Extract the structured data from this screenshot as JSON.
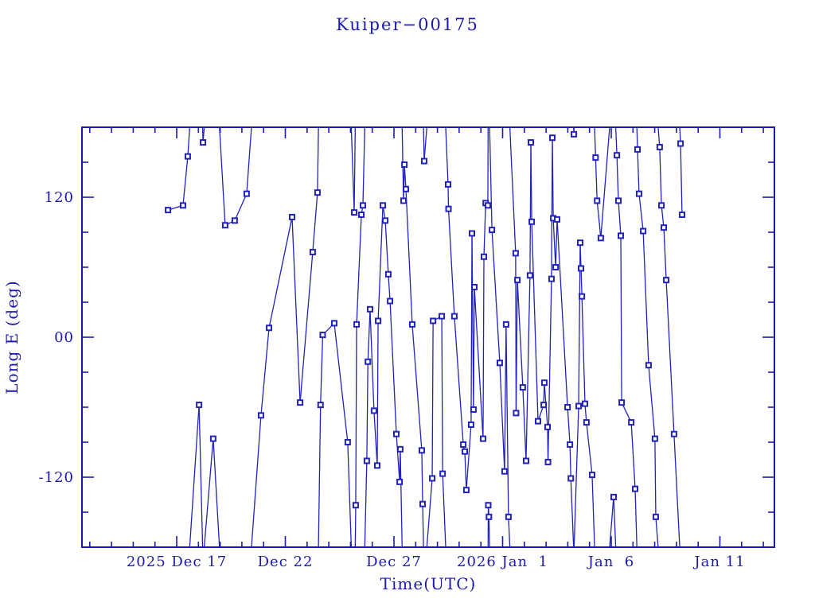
{
  "page": {
    "background": "#ffffff"
  },
  "colors": {
    "ink": "#1a1aae",
    "line": "#2121bc",
    "marker": "#2121bc"
  },
  "chart_data": {
    "type": "line",
    "title": "Kuiper−00175",
    "xlabel": "Time(UTC)",
    "ylabel": "Long E (deg)",
    "x_unit": "days since 2025 Dec 17 00:00 UTC",
    "xlim": [
      -4.36,
      27.51
    ],
    "ylim": [
      -180,
      180
    ],
    "wrap_degrees": true,
    "grid": false,
    "legend": "none",
    "marker_style": "open-square",
    "x_major_ticks": [
      {
        "day": 0,
        "label": "2025 Dec 17"
      },
      {
        "day": 5,
        "label": "Dec 22"
      },
      {
        "day": 10,
        "label": "Dec 27"
      },
      {
        "day": 15,
        "label": "2026 Jan  1"
      },
      {
        "day": 20,
        "label": "Jan  6"
      },
      {
        "day": 25,
        "label": "Jan 11"
      }
    ],
    "x_minor_step_days": 1,
    "y_major_ticks": [
      {
        "value": 120,
        "label": "120"
      },
      {
        "value": 0,
        "label": "00"
      },
      {
        "value": -120,
        "label": "-120"
      }
    ],
    "y_minor_step": 30,
    "points": [
      [
        -0.4,
        109
      ],
      [
        0.29,
        113
      ],
      [
        0.51,
        155
      ],
      [
        1.03,
        -58
      ],
      [
        1.21,
        167
      ],
      [
        1.68,
        -87
      ],
      [
        2.23,
        96
      ],
      [
        2.67,
        100
      ],
      [
        3.22,
        123
      ],
      [
        3.88,
        -67
      ],
      [
        4.25,
        8
      ],
      [
        5.31,
        103
      ],
      [
        5.68,
        -56
      ],
      [
        6.26,
        73
      ],
      [
        6.48,
        124
      ],
      [
        6.62,
        -58
      ],
      [
        6.72,
        2
      ],
      [
        7.25,
        12
      ],
      [
        7.87,
        -90
      ],
      [
        8.17,
        107
      ],
      [
        8.24,
        -144
      ],
      [
        8.28,
        11
      ],
      [
        8.5,
        105
      ],
      [
        8.57,
        113
      ],
      [
        8.75,
        -106
      ],
      [
        8.8,
        -21
      ],
      [
        8.9,
        24
      ],
      [
        9.08,
        -63
      ],
      [
        9.23,
        -110
      ],
      [
        9.27,
        14
      ],
      [
        9.49,
        113
      ],
      [
        9.6,
        100
      ],
      [
        9.74,
        54
      ],
      [
        9.82,
        31
      ],
      [
        10.11,
        -83
      ],
      [
        10.26,
        -124
      ],
      [
        10.29,
        -96
      ],
      [
        10.44,
        117
      ],
      [
        10.48,
        148
      ],
      [
        10.55,
        127
      ],
      [
        10.84,
        11
      ],
      [
        11.28,
        -97
      ],
      [
        11.32,
        -143
      ],
      [
        11.39,
        151
      ],
      [
        11.76,
        -121
      ],
      [
        11.8,
        14
      ],
      [
        12.2,
        18
      ],
      [
        12.24,
        -117
      ],
      [
        12.49,
        131
      ],
      [
        12.51,
        110
      ],
      [
        12.78,
        18
      ],
      [
        13.19,
        -92
      ],
      [
        13.26,
        -98
      ],
      [
        13.33,
        -131
      ],
      [
        13.55,
        -75
      ],
      [
        13.59,
        89
      ],
      [
        13.66,
        -62
      ],
      [
        13.7,
        43
      ],
      [
        14.1,
        -87
      ],
      [
        14.14,
        69
      ],
      [
        14.22,
        115
      ],
      [
        14.32,
        113
      ],
      [
        14.34,
        -144
      ],
      [
        14.37,
        -154
      ],
      [
        14.51,
        92
      ],
      [
        14.87,
        -22
      ],
      [
        15.09,
        -115
      ],
      [
        15.16,
        11
      ],
      [
        15.27,
        -154
      ],
      [
        15.6,
        72
      ],
      [
        15.62,
        -65
      ],
      [
        15.68,
        49
      ],
      [
        15.93,
        -43
      ],
      [
        16.08,
        -106
      ],
      [
        16.26,
        53
      ],
      [
        16.3,
        167
      ],
      [
        16.34,
        99
      ],
      [
        16.63,
        -72
      ],
      [
        16.89,
        -58
      ],
      [
        16.92,
        -39
      ],
      [
        17.07,
        -77
      ],
      [
        17.09,
        -107
      ],
      [
        17.25,
        50
      ],
      [
        17.29,
        171
      ],
      [
        17.33,
        102
      ],
      [
        17.44,
        60
      ],
      [
        17.51,
        101
      ],
      [
        17.99,
        -60
      ],
      [
        18.1,
        -92
      ],
      [
        18.14,
        -121
      ],
      [
        18.28,
        174
      ],
      [
        18.5,
        -59
      ],
      [
        18.57,
        81
      ],
      [
        18.61,
        59
      ],
      [
        18.65,
        35
      ],
      [
        18.79,
        -57
      ],
      [
        18.86,
        -73
      ],
      [
        19.12,
        -118
      ],
      [
        19.28,
        154
      ],
      [
        19.35,
        117
      ],
      [
        19.52,
        85
      ],
      [
        20.11,
        -137
      ],
      [
        20.26,
        156
      ],
      [
        20.33,
        117
      ],
      [
        20.44,
        87
      ],
      [
        20.48,
        -56
      ],
      [
        20.92,
        -73
      ],
      [
        21.1,
        -130
      ],
      [
        21.21,
        161
      ],
      [
        21.28,
        123
      ],
      [
        21.47,
        91
      ],
      [
        21.72,
        -24
      ],
      [
        22.01,
        -87
      ],
      [
        22.05,
        -154
      ],
      [
        22.23,
        163
      ],
      [
        22.31,
        113
      ],
      [
        22.42,
        94
      ],
      [
        22.53,
        49
      ],
      [
        22.89,
        -83
      ],
      [
        23.19,
        166
      ],
      [
        23.26,
        105
      ]
    ]
  }
}
